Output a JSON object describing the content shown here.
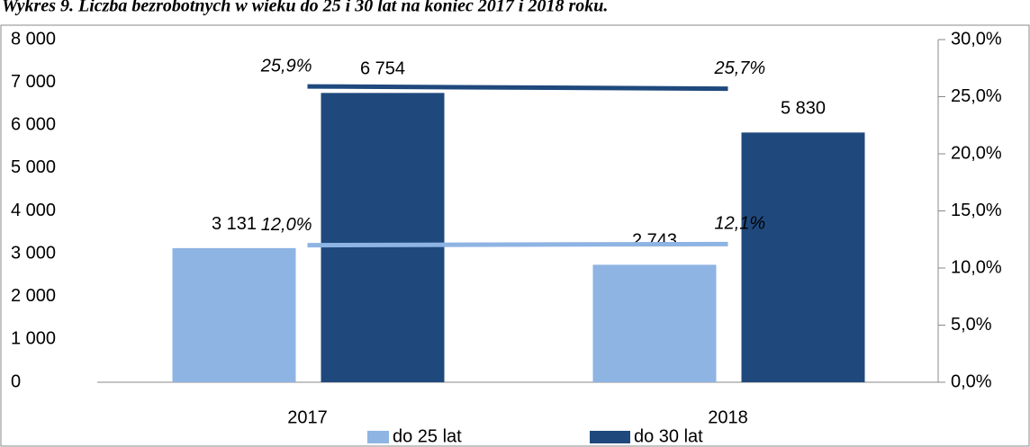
{
  "chart_data": {
    "type": "bar",
    "title": "Wykres 9. Liczba bezrobotnych w wieku do 25 i 30 lat na koniec 2017 i 2018 roku.",
    "categories": [
      "2017",
      "2018"
    ],
    "series": [
      {
        "name": "do 25 lat",
        "color": "#8eb4e3",
        "values": [
          3131,
          2743
        ],
        "value_labels": [
          "3 131",
          "2 743"
        ]
      },
      {
        "name": "do 30 lat",
        "color": "#1f497d",
        "values": [
          6754,
          5830
        ],
        "value_labels": [
          "6 754",
          "5 830"
        ]
      }
    ],
    "lines": [
      {
        "color": "#8eb4e3",
        "axis": "y2",
        "values": [
          12.0,
          12.1
        ],
        "value_labels": [
          "12,0%",
          "12,1%"
        ]
      },
      {
        "color": "#1f497d",
        "axis": "y2",
        "values": [
          25.9,
          25.7
        ],
        "value_labels": [
          "25,9%",
          "25,7%"
        ]
      }
    ],
    "ylim": [
      0,
      8000
    ],
    "yticks": [
      0,
      {
        "value": 1000,
        "label": "1 000"
      },
      {
        "value": 2000,
        "label": "2 000"
      },
      {
        "value": 3000,
        "label": "3 000"
      },
      {
        "value": 4000,
        "label": "4 000"
      },
      {
        "value": 5000,
        "label": "5 000"
      },
      {
        "value": 6000,
        "label": "6 000"
      },
      {
        "value": 7000,
        "label": "7 000"
      },
      {
        "value": 8000,
        "label": "8 000"
      }
    ],
    "y2lim": [
      0,
      30
    ],
    "y2ticks": [
      {
        "value": 0,
        "label": "0,0%"
      },
      {
        "value": 5,
        "label": "5,0%"
      },
      {
        "value": 10,
        "label": "10,0%"
      },
      {
        "value": 15,
        "label": "15,0%"
      },
      {
        "value": 20,
        "label": "20,0%"
      },
      {
        "value": 25,
        "label": "25,0%"
      },
      {
        "value": 30,
        "label": "30,0%"
      }
    ],
    "legend": "bottom"
  }
}
